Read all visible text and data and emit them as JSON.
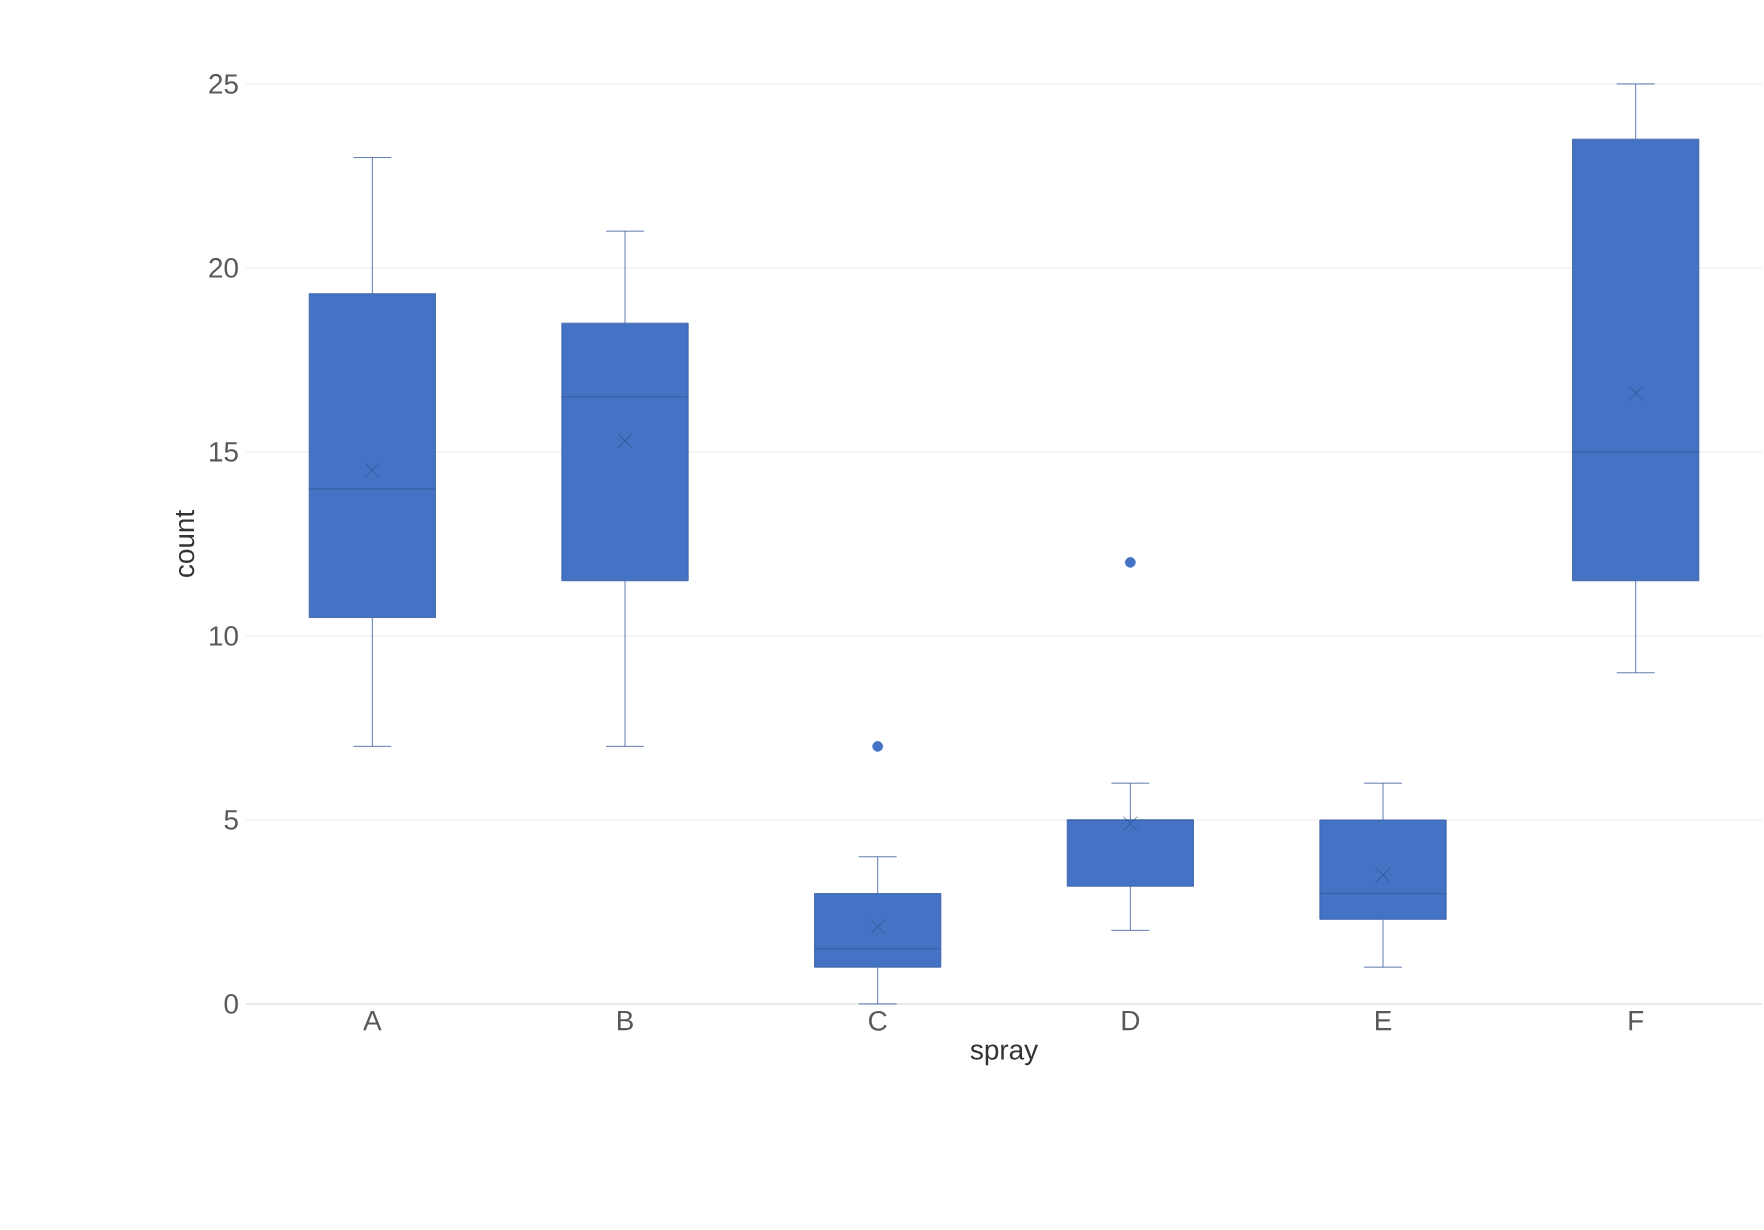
{
  "chart_data": {
    "type": "box",
    "xlabel": "spray",
    "ylabel": "count",
    "categories": [
      "A",
      "B",
      "C",
      "D",
      "E",
      "F"
    ],
    "color": "#4472c4",
    "ylim": [
      0,
      25
    ],
    "yticks": [
      0,
      5,
      10,
      15,
      20,
      25
    ],
    "grid": "y",
    "boxes": [
      {
        "low": 7,
        "q1": 10.5,
        "median": 14,
        "q3": 19.3,
        "high": 23,
        "mean": 14.5
      },
      {
        "low": 7,
        "q1": 11.5,
        "median": 16.5,
        "q3": 18.5,
        "high": 21,
        "mean": 15.3
      },
      {
        "low": 0,
        "q1": 1,
        "median": 1.5,
        "q3": 3,
        "high": 4,
        "mean": 2.1,
        "outliers": [
          7
        ]
      },
      {
        "low": 2,
        "q1": 3.2,
        "median": 5,
        "q3": 5,
        "high": 6,
        "mean": 4.9,
        "outliers": [
          12
        ]
      },
      {
        "low": 1,
        "q1": 2.3,
        "median": 3,
        "q3": 5,
        "high": 6,
        "mean": 3.5
      },
      {
        "low": 9,
        "q1": 11.5,
        "median": 15,
        "q3": 23.5,
        "high": 25,
        "mean": 16.6
      }
    ]
  }
}
